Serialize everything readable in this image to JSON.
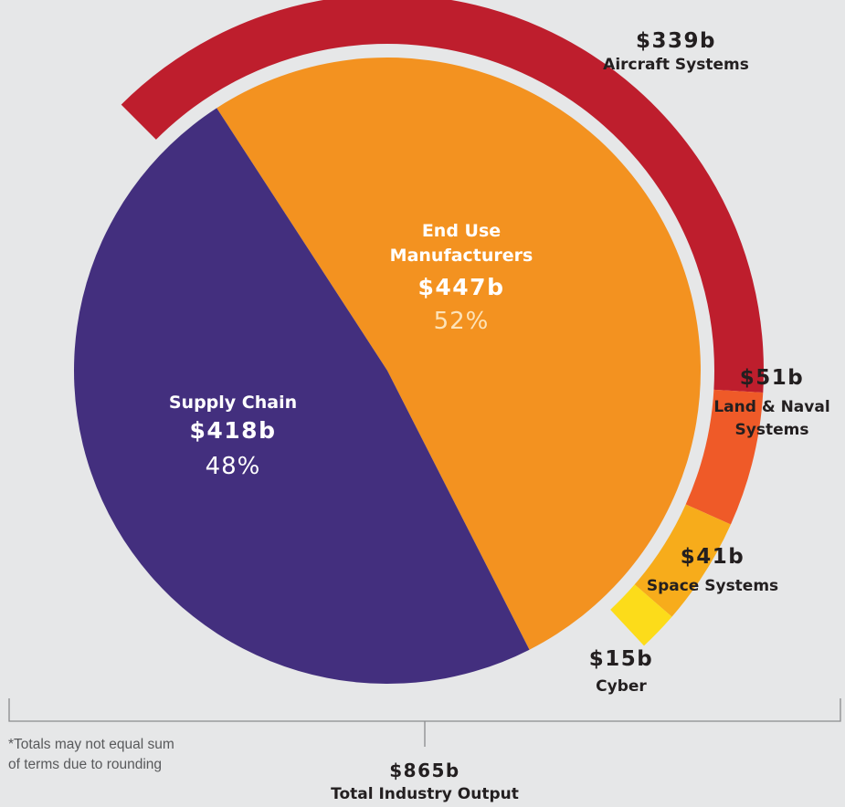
{
  "chart_data": {
    "type": "pie",
    "inner": [
      {
        "key": "end_use",
        "name": "End Use Manufacturers",
        "name_lines": [
          "End Use",
          "Manufacturers"
        ],
        "value_label": "$447b",
        "value": 447,
        "percent_label": "52%",
        "percent": 52,
        "color": "#f39220"
      },
      {
        "key": "supply_chain",
        "name": "Supply Chain",
        "name_lines": [
          "Supply Chain"
        ],
        "value_label": "$418b",
        "value": 418,
        "percent_label": "48%",
        "percent": 48,
        "color": "#432f7e"
      }
    ],
    "outer_ring": [
      {
        "key": "aircraft",
        "name": "Aircraft Systems",
        "name_lines": [
          "Aircraft Systems"
        ],
        "value_label": "$339b",
        "value": 339,
        "color": "#be1e2d"
      },
      {
        "key": "land_naval",
        "name": "Land & Naval Systems",
        "name_lines": [
          "Land & Naval",
          "Systems"
        ],
        "value_label": "$51b",
        "value": 51,
        "color": "#ef5a28"
      },
      {
        "key": "space",
        "name": "Space Systems",
        "name_lines": [
          "Space Systems"
        ],
        "value_label": "$41b",
        "value": 41,
        "color": "#f7ac1b"
      },
      {
        "key": "cyber",
        "name": "Cyber",
        "name_lines": [
          "Cyber"
        ],
        "value_label": "$15b",
        "value": 15,
        "color": "#fcdc1a"
      }
    ],
    "total": {
      "value_label": "$865b",
      "value": 865,
      "label": "Total Industry Output"
    },
    "footnote_lines": [
      "*Totals may not equal sum",
      "of terms due to rounding"
    ]
  }
}
